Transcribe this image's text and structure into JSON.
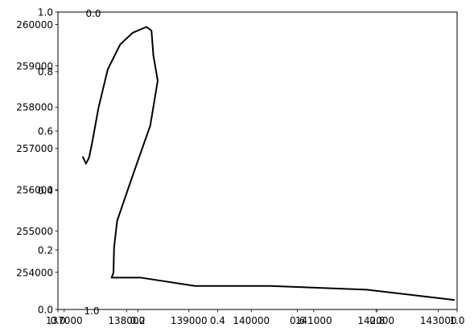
{
  "chart_data": [
    {
      "type": "line",
      "title": "",
      "xlabel": "",
      "ylabel": "",
      "grid": false,
      "legend": "none",
      "xlim": [
        136900,
        143300
      ],
      "ylim": [
        253100,
        260300
      ],
      "x_ticks": [
        {
          "value": 137000,
          "label": "137000"
        },
        {
          "value": 138000,
          "label": "138000"
        },
        {
          "value": 139000,
          "label": "139000"
        },
        {
          "value": 140000,
          "label": "140000"
        },
        {
          "value": 141000,
          "label": "141000"
        },
        {
          "value": 142000,
          "label": "142000"
        },
        {
          "value": 143000,
          "label": "143000"
        }
      ],
      "y_ticks": [
        {
          "value": 254000,
          "label": "254000"
        },
        {
          "value": 255000,
          "label": "255000"
        },
        {
          "value": 256000,
          "label": "256000"
        },
        {
          "value": 257000,
          "label": "257000"
        },
        {
          "value": 258000,
          "label": "258000"
        },
        {
          "value": 259000,
          "label": "259000"
        },
        {
          "value": 260000,
          "label": "260000"
        }
      ],
      "series": [
        {
          "color": "#000000",
          "x": [
            137300,
            137350,
            137400,
            137450,
            137550,
            137700,
            137900,
            138100,
            138320,
            138400,
            138430,
            138500,
            138380,
            138100,
            137850,
            137800,
            137790,
            137760,
            138230,
            139100,
            140300,
            141850,
            143250
          ],
          "y": [
            256790,
            256630,
            256780,
            257150,
            257980,
            258920,
            259520,
            259800,
            259940,
            259850,
            259250,
            258640,
            257550,
            256350,
            255250,
            254600,
            253990,
            253870,
            253870,
            253670,
            253670,
            253580,
            253330
          ]
        }
      ]
    },
    {
      "type": "line",
      "title": "",
      "xlim": [
        0.0,
        1.0
      ],
      "ylim": [
        0.0,
        1.0
      ],
      "x_ticks": [
        {
          "value": 0.0,
          "label": "0.0"
        },
        {
          "value": 0.2,
          "label": "0.2"
        },
        {
          "value": 0.4,
          "label": "0.4"
        },
        {
          "value": 0.6,
          "label": "0.6"
        },
        {
          "value": 0.8,
          "label": "0.8"
        },
        {
          "value": 1.0,
          "label": "1.0"
        }
      ],
      "y_ticks": [
        {
          "value": 0.0,
          "label": "0.0"
        },
        {
          "value": 0.2,
          "label": "0.2"
        },
        {
          "value": 0.4,
          "label": "0.4"
        },
        {
          "value": 0.6,
          "label": "0.6"
        },
        {
          "value": 0.8,
          "label": "0.8"
        },
        {
          "value": 1.0,
          "label": "1.0"
        }
      ],
      "series": []
    }
  ],
  "stray_labels": [
    "0.0",
    "1.0"
  ]
}
